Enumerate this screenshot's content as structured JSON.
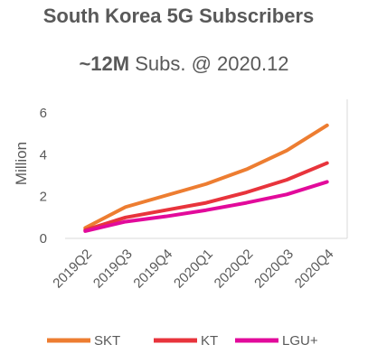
{
  "title": "South Korea 5G Subscribers",
  "subtitle": {
    "bold": "~12M",
    "rest": " Subs. @ 2020.12"
  },
  "chart_data": {
    "type": "line",
    "title": "South Korea 5G Subscribers",
    "ylabel": "Million",
    "xlabel": "",
    "categories": [
      "2019Q2",
      "2019Q3",
      "2019Q4",
      "2020Q1",
      "2020Q2",
      "2020Q3",
      "2020Q4"
    ],
    "yticks": [
      0,
      2,
      4,
      6
    ],
    "ylim": [
      0,
      6.3
    ],
    "grid": false,
    "legend_position": "bottom",
    "series": [
      {
        "name": "SKT",
        "color": "#ED7D31",
        "values": [
          0.5,
          1.5,
          2.05,
          2.6,
          3.3,
          4.2,
          5.4
        ]
      },
      {
        "name": "KT",
        "color": "#E8343C",
        "values": [
          0.4,
          1.0,
          1.35,
          1.7,
          2.2,
          2.8,
          3.6
        ]
      },
      {
        "name": "LGU+",
        "color": "#E20A9B",
        "values": [
          0.35,
          0.8,
          1.05,
          1.35,
          1.7,
          2.1,
          2.7
        ]
      }
    ]
  }
}
